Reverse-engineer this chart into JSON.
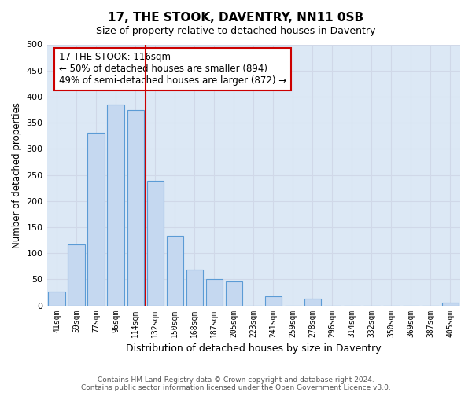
{
  "title": "17, THE STOOK, DAVENTRY, NN11 0SB",
  "subtitle": "Size of property relative to detached houses in Daventry",
  "xlabel": "Distribution of detached houses by size in Daventry",
  "ylabel": "Number of detached properties",
  "bar_labels": [
    "41sqm",
    "59sqm",
    "77sqm",
    "96sqm",
    "114sqm",
    "132sqm",
    "150sqm",
    "168sqm",
    "187sqm",
    "205sqm",
    "223sqm",
    "241sqm",
    "259sqm",
    "278sqm",
    "296sqm",
    "314sqm",
    "332sqm",
    "350sqm",
    "369sqm",
    "387sqm",
    "405sqm"
  ],
  "bar_values": [
    27,
    117,
    330,
    385,
    375,
    238,
    133,
    68,
    50,
    46,
    0,
    18,
    0,
    13,
    0,
    0,
    0,
    0,
    0,
    0,
    5
  ],
  "bar_color": "#c5d8f0",
  "bar_edgecolor": "#5b9bd5",
  "vline_x": 4.5,
  "vline_color": "#cc0000",
  "annotation_box_text": "17 THE STOOK: 116sqm\n← 50% of detached houses are smaller (894)\n49% of semi-detached houses are larger (872) →",
  "annotation_box_color": "#cc0000",
  "ylim": [
    0,
    500
  ],
  "yticks": [
    0,
    50,
    100,
    150,
    200,
    250,
    300,
    350,
    400,
    450,
    500
  ],
  "grid_color": "#d0d8e8",
  "background_color": "#dce8f5",
  "footer_line1": "Contains HM Land Registry data © Crown copyright and database right 2024.",
  "footer_line2": "Contains public sector information licensed under the Open Government Licence v3.0."
}
